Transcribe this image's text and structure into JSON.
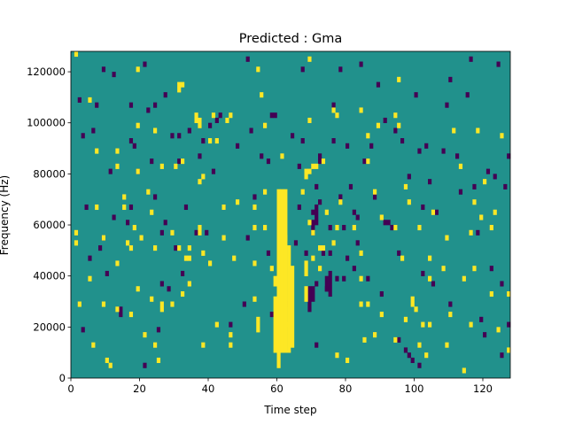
{
  "chart_data": {
    "type": "heatmap",
    "title": "Predicted : Gma",
    "xlabel": "Time step",
    "ylabel": "Frequency (Hz)",
    "xlim": [
      0,
      128
    ],
    "ylim": [
      0,
      128000
    ],
    "xticks": [
      0,
      20,
      40,
      60,
      80,
      100,
      120
    ],
    "yticks": [
      0,
      20000,
      40000,
      60000,
      80000,
      100000,
      120000
    ],
    "n_rows": 64,
    "colors": {
      "background": "#21918c",
      "high": "#fde725",
      "low": "#440154"
    },
    "high_cells": [
      [
        1,
        63
      ],
      [
        1,
        28
      ],
      [
        1,
        26
      ],
      [
        2,
        14
      ],
      [
        5,
        54
      ],
      [
        5,
        19
      ],
      [
        6,
        6
      ],
      [
        7,
        33
      ],
      [
        7,
        44
      ],
      [
        9,
        27
      ],
      [
        9,
        14
      ],
      [
        10,
        3
      ],
      [
        11,
        2
      ],
      [
        13,
        44
      ],
      [
        13,
        41
      ],
      [
        13,
        22
      ],
      [
        13,
        13
      ],
      [
        15,
        35
      ],
      [
        15,
        33
      ],
      [
        16,
        26
      ],
      [
        17,
        25
      ],
      [
        17,
        12
      ],
      [
        18,
        29
      ],
      [
        19,
        40
      ],
      [
        19,
        60
      ],
      [
        19,
        49
      ],
      [
        19,
        17
      ],
      [
        20,
        27
      ],
      [
        21,
        8
      ],
      [
        22,
        36
      ],
      [
        23,
        32
      ],
      [
        23,
        15
      ],
      [
        24,
        6
      ],
      [
        24,
        48
      ],
      [
        24,
        25
      ],
      [
        25,
        3
      ],
      [
        26,
        13
      ],
      [
        26,
        14
      ],
      [
        26,
        41
      ],
      [
        29,
        28
      ],
      [
        29,
        14
      ],
      [
        30,
        41
      ],
      [
        31,
        56
      ],
      [
        31,
        57
      ],
      [
        31,
        25
      ],
      [
        32,
        16
      ],
      [
        32,
        42
      ],
      [
        32,
        57
      ],
      [
        33,
        23
      ],
      [
        34,
        18
      ],
      [
        34,
        23
      ],
      [
        34,
        25
      ],
      [
        37,
        38
      ],
      [
        37,
        29
      ],
      [
        37,
        28
      ],
      [
        38,
        39
      ],
      [
        38,
        24
      ],
      [
        38,
        6
      ],
      [
        40,
        22
      ],
      [
        40,
        46
      ],
      [
        41,
        51
      ],
      [
        42,
        10
      ],
      [
        42,
        46
      ],
      [
        44,
        27
      ],
      [
        44,
        33
      ],
      [
        45,
        50
      ],
      [
        46,
        6
      ],
      [
        46,
        8
      ],
      [
        46,
        51
      ],
      [
        47,
        23
      ],
      [
        48,
        34
      ],
      [
        53,
        33
      ],
      [
        53,
        15
      ],
      [
        53,
        22
      ],
      [
        53,
        29
      ],
      [
        54,
        60
      ],
      [
        54,
        11
      ],
      [
        55,
        55
      ],
      [
        56,
        29
      ],
      [
        56,
        36
      ],
      [
        56,
        49
      ],
      [
        58,
        21
      ],
      [
        61,
        17
      ],
      [
        61,
        31
      ],
      [
        61,
        35
      ],
      [
        61,
        43
      ],
      [
        62,
        27
      ],
      [
        62,
        10
      ],
      [
        67,
        36
      ],
      [
        69,
        30
      ],
      [
        69,
        40
      ],
      [
        69,
        50
      ],
      [
        69,
        62
      ],
      [
        70,
        23
      ],
      [
        70,
        28
      ],
      [
        70,
        41
      ],
      [
        71,
        41
      ],
      [
        72,
        21
      ],
      [
        72,
        25
      ],
      [
        73,
        25
      ],
      [
        73,
        42
      ],
      [
        74,
        32
      ],
      [
        76,
        26
      ],
      [
        76,
        52
      ],
      [
        77,
        29
      ],
      [
        77,
        4
      ],
      [
        77,
        51
      ],
      [
        78,
        34
      ],
      [
        80,
        3
      ],
      [
        82,
        29
      ],
      [
        84,
        24
      ],
      [
        84,
        52
      ],
      [
        84,
        14
      ],
      [
        84,
        19
      ],
      [
        85,
        7
      ],
      [
        86,
        14
      ],
      [
        86,
        42
      ],
      [
        86,
        47
      ],
      [
        88,
        8
      ],
      [
        88,
        36
      ],
      [
        89,
        49
      ],
      [
        90,
        12
      ],
      [
        90,
        31
      ],
      [
        94,
        51
      ],
      [
        94,
        29
      ],
      [
        94,
        7
      ],
      [
        95,
        49
      ],
      [
        95,
        58
      ],
      [
        96,
        23
      ],
      [
        97,
        11
      ],
      [
        97,
        37
      ],
      [
        98,
        34
      ],
      [
        99,
        14
      ],
      [
        99,
        15
      ],
      [
        100,
        13
      ],
      [
        101,
        6
      ],
      [
        101,
        29
      ],
      [
        102,
        10
      ],
      [
        103,
        4
      ],
      [
        104,
        10
      ],
      [
        104,
        19
      ],
      [
        104,
        23
      ],
      [
        105,
        32
      ],
      [
        108,
        21
      ],
      [
        109,
        6
      ],
      [
        109,
        27
      ],
      [
        110,
        12
      ],
      [
        111,
        48
      ],
      [
        113,
        41
      ],
      [
        114,
        1
      ],
      [
        114,
        19
      ],
      [
        116,
        10
      ],
      [
        116,
        28
      ],
      [
        117,
        21
      ],
      [
        117,
        34
      ],
      [
        118,
        48
      ],
      [
        119,
        31
      ],
      [
        120,
        38
      ],
      [
        122,
        29
      ],
      [
        122,
        16
      ],
      [
        123,
        32
      ],
      [
        124,
        9
      ],
      [
        125,
        47
      ],
      [
        127,
        16
      ],
      [
        127,
        5
      ]
    ],
    "high_runs": [
      [
        59,
        5,
        15
      ],
      [
        59,
        18,
        19
      ],
      [
        60,
        2,
        33
      ],
      [
        60,
        5,
        36
      ],
      [
        61,
        5,
        36
      ],
      [
        62,
        5,
        36
      ],
      [
        63,
        5,
        25
      ],
      [
        64,
        6,
        21
      ],
      [
        68,
        15,
        17
      ],
      [
        68,
        20,
        22
      ],
      [
        54,
        9,
        10
      ],
      [
        36,
        50,
        51
      ],
      [
        37,
        49,
        50
      ],
      [
        68,
        39,
        40
      ]
    ],
    "low_cells": [
      [
        2,
        54
      ],
      [
        3,
        47
      ],
      [
        3,
        9
      ],
      [
        4,
        33
      ],
      [
        5,
        23
      ],
      [
        6,
        48
      ],
      [
        7,
        53
      ],
      [
        8,
        25
      ],
      [
        9,
        60
      ],
      [
        9,
        27
      ],
      [
        10,
        20
      ],
      [
        11,
        40
      ],
      [
        12,
        59
      ],
      [
        12,
        31
      ],
      [
        14,
        13
      ],
      [
        14,
        12
      ],
      [
        16,
        30
      ],
      [
        17,
        53
      ],
      [
        17,
        46
      ],
      [
        17,
        33
      ],
      [
        18,
        45
      ],
      [
        19,
        40
      ],
      [
        21,
        61
      ],
      [
        21,
        2
      ],
      [
        22,
        52
      ],
      [
        23,
        42
      ],
      [
        24,
        53
      ],
      [
        24,
        35
      ],
      [
        25,
        9
      ],
      [
        26,
        28
      ],
      [
        26,
        18
      ],
      [
        27,
        55
      ],
      [
        27,
        30
      ],
      [
        28,
        17
      ],
      [
        29,
        47
      ],
      [
        30,
        25
      ],
      [
        31,
        42
      ],
      [
        31,
        47
      ],
      [
        32,
        20
      ],
      [
        33,
        33
      ],
      [
        34,
        48
      ],
      [
        36,
        28
      ],
      [
        37,
        43
      ],
      [
        38,
        46
      ],
      [
        39,
        28
      ],
      [
        40,
        49
      ],
      [
        41,
        40
      ],
      [
        42,
        50
      ],
      [
        43,
        51
      ],
      [
        44,
        33
      ],
      [
        46,
        10
      ],
      [
        48,
        45
      ],
      [
        50,
        14
      ],
      [
        51,
        62
      ],
      [
        51,
        27
      ],
      [
        52,
        48
      ],
      [
        53,
        35
      ],
      [
        55,
        43
      ],
      [
        57,
        42
      ],
      [
        57,
        24
      ],
      [
        58,
        12
      ],
      [
        58,
        51
      ],
      [
        59,
        51
      ],
      [
        61,
        27
      ],
      [
        63,
        14
      ],
      [
        64,
        47
      ],
      [
        65,
        26
      ],
      [
        66,
        33
      ],
      [
        66,
        41
      ],
      [
        67,
        60
      ],
      [
        67,
        46
      ],
      [
        68,
        24
      ],
      [
        70,
        32
      ],
      [
        71,
        37
      ],
      [
        71,
        6
      ],
      [
        71,
        18
      ],
      [
        72,
        34
      ],
      [
        73,
        24
      ],
      [
        74,
        17
      ],
      [
        75,
        24
      ],
      [
        75,
        29
      ],
      [
        76,
        46
      ],
      [
        76,
        53
      ],
      [
        77,
        19
      ],
      [
        78,
        60
      ],
      [
        78,
        35
      ],
      [
        79,
        19
      ],
      [
        79,
        29
      ],
      [
        80,
        45
      ],
      [
        80,
        23
      ],
      [
        81,
        37
      ],
      [
        82,
        32
      ],
      [
        82,
        21
      ],
      [
        83,
        31
      ],
      [
        83,
        26
      ],
      [
        84,
        61
      ],
      [
        85,
        42
      ],
      [
        86,
        19
      ],
      [
        87,
        45
      ],
      [
        88,
        35
      ],
      [
        89,
        57
      ],
      [
        90,
        16
      ],
      [
        91,
        30
      ],
      [
        91,
        50
      ],
      [
        92,
        30
      ],
      [
        93,
        29
      ],
      [
        94,
        48
      ],
      [
        95,
        7
      ],
      [
        95,
        24
      ],
      [
        96,
        46
      ],
      [
        97,
        5
      ],
      [
        98,
        4
      ],
      [
        98,
        39
      ],
      [
        99,
        3
      ],
      [
        100,
        55
      ],
      [
        101,
        2
      ],
      [
        101,
        44
      ],
      [
        102,
        33
      ],
      [
        102,
        20
      ],
      [
        103,
        45
      ],
      [
        104,
        38
      ],
      [
        105,
        18
      ],
      [
        106,
        32
      ],
      [
        108,
        44
      ],
      [
        109,
        53
      ],
      [
        110,
        58
      ],
      [
        110,
        14
      ],
      [
        112,
        43
      ],
      [
        113,
        36
      ],
      [
        115,
        55
      ],
      [
        116,
        62
      ],
      [
        117,
        37
      ],
      [
        118,
        28
      ],
      [
        119,
        11
      ],
      [
        120,
        8
      ],
      [
        121,
        40
      ],
      [
        122,
        21
      ],
      [
        123,
        39
      ],
      [
        124,
        61
      ],
      [
        125,
        4
      ],
      [
        125,
        18
      ],
      [
        126,
        37
      ],
      [
        127,
        43
      ],
      [
        127,
        10
      ]
    ],
    "low_runs": [
      [
        69,
        13,
        17
      ],
      [
        70,
        15,
        17
      ],
      [
        70,
        28,
        30
      ],
      [
        71,
        30,
        33
      ],
      [
        74,
        17,
        19
      ],
      [
        75,
        16,
        20
      ],
      [
        72,
        42,
        43
      ]
    ]
  }
}
